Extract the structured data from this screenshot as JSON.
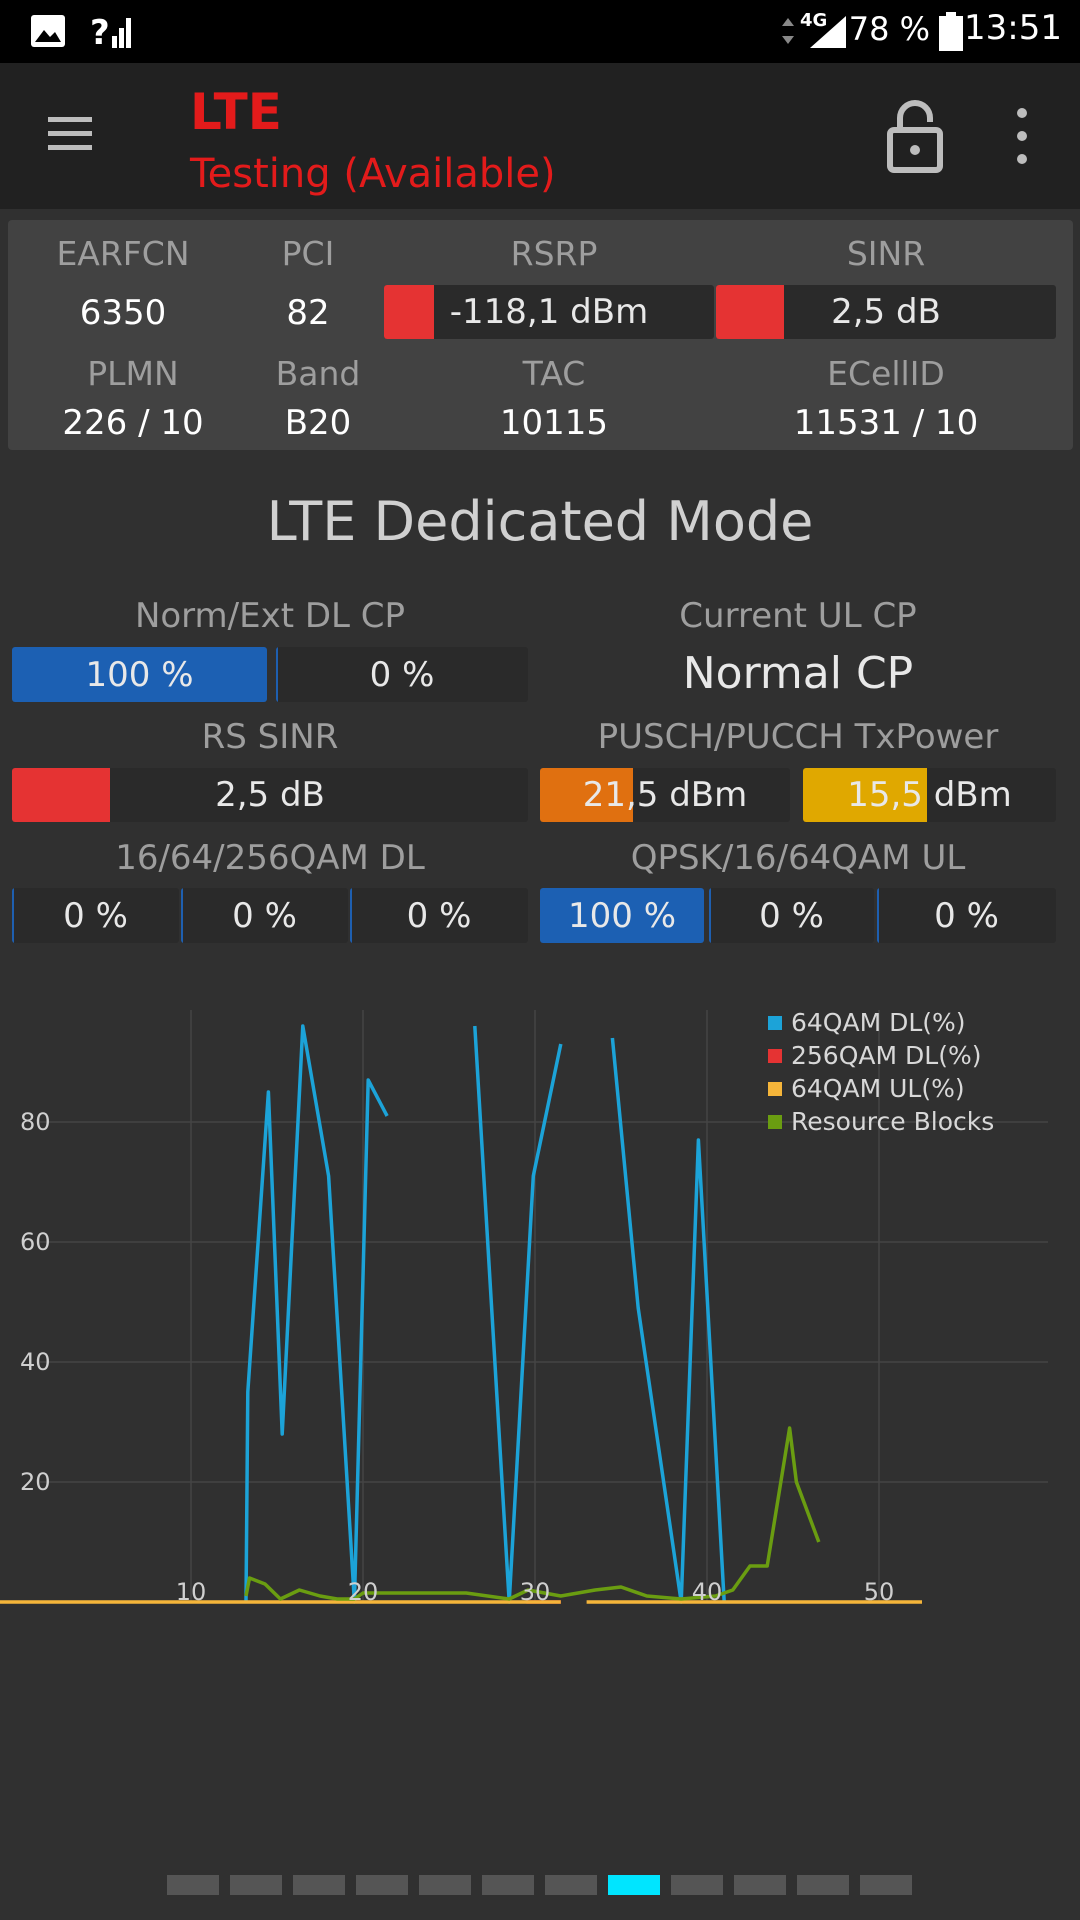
{
  "status_bar": {
    "time": "13:51",
    "battery": "78 %",
    "network": "4G",
    "icons": [
      "image-icon",
      "signal-unknown-icon",
      "data-arrows-icon",
      "signal-icon",
      "battery-icon"
    ]
  },
  "app_bar": {
    "title": "LTE",
    "subtitle": "Testing (Available)",
    "icons": [
      "menu-icon",
      "lock-open-icon",
      "more-vert-icon"
    ]
  },
  "cell_info": {
    "earfcn_label": "EARFCN",
    "earfcn": "6350",
    "pci_label": "PCI",
    "pci": "82",
    "rsrp_label": "RSRP",
    "rsrp": "-118,1 dBm",
    "rsrp_level": 0.15,
    "sinr_label": "SINR",
    "sinr": "2,5 dB",
    "sinr_level": 0.2,
    "plmn_label": "PLMN",
    "plmn": "226 / 10",
    "band_label": "Band",
    "band": "B20",
    "tac_label": "TAC",
    "tac": "10115",
    "ecellid_label": "ECellID",
    "ecellid": "11531 / 10"
  },
  "dedicated": {
    "title": "LTE Dedicated Mode",
    "dl_cp_label": "Norm/Ext DL CP",
    "dl_cp_norm": "100 %",
    "dl_cp_norm_level": 1.0,
    "dl_cp_ext": "0 %",
    "ul_cp_label": "Current UL CP",
    "ul_cp_value": "Normal CP",
    "rs_sinr_label": "RS SINR",
    "rs_sinr": "2,5 dB",
    "rs_sinr_level": 0.19,
    "txpower_label": "PUSCH/PUCCH TxPower",
    "pusch": "21,5 dBm",
    "pusch_level": 0.37,
    "pucch": "15,5 dBm",
    "pucch_level": 0.49,
    "qam_dl_label": "16/64/256QAM DL",
    "qam_dl": [
      "0 %",
      "0 %",
      "0 %"
    ],
    "qam_ul_label": "QPSK/16/64QAM UL",
    "qam_ul": [
      "100 %",
      "0 %",
      "0 %"
    ],
    "qam_ul_levels": [
      1.0,
      0,
      0
    ]
  },
  "colors": {
    "red": "#e53333",
    "blue": "#1c60b3",
    "orange": "#e07010",
    "amber": "#e0a800",
    "cyan": "#1ca3d8",
    "green": "#6a9d11",
    "ul_yellow": "#f5b53a",
    "pager_active": "#00e5ff",
    "pager_inactive": "#555555"
  },
  "chart_data": {
    "type": "line",
    "x_ticks": [
      10,
      20,
      30,
      40,
      50
    ],
    "y_ticks": [
      20,
      40,
      60,
      80
    ],
    "xlim": [
      0,
      59
    ],
    "ylim": [
      0,
      100
    ],
    "legend_position": "top-right",
    "series": [
      {
        "name": "64QAM DL(%)",
        "color": "#1ca3d8",
        "segments": [
          [
            [
              13.2,
              0
            ],
            [
              13.3,
              35
            ],
            [
              14.5,
              85
            ],
            [
              15.3,
              28
            ],
            [
              16.5,
              96
            ],
            [
              18,
              71
            ],
            [
              19.5,
              0
            ],
            [
              20.3,
              87
            ],
            [
              21.4,
              81
            ]
          ],
          [
            [
              26.5,
              96
            ],
            [
              28.5,
              0
            ],
            [
              29.9,
              71
            ],
            [
              31.5,
              93
            ]
          ],
          [
            [
              34.5,
              94
            ],
            [
              36,
              49
            ],
            [
              38.5,
              0
            ],
            [
              39.5,
              77
            ],
            [
              41,
              0
            ]
          ]
        ]
      },
      {
        "name": "256QAM DL(%)",
        "color": "#e53333",
        "segments": [
          [
            [
              29.5,
              0
            ],
            [
              31.5,
              0
            ]
          ]
        ]
      },
      {
        "name": "64QAM UL(%)",
        "color": "#f5b53a",
        "segments": [
          [
            [
              -9,
              0
            ],
            [
              31.5,
              0
            ]
          ],
          [
            [
              33,
              0
            ],
            [
              52.5,
              0
            ]
          ]
        ]
      },
      {
        "name": "Resource Blocks",
        "color": "#6a9d11",
        "segments": [
          [
            [
              -8,
              1.5
            ],
            [
              -3.2,
              1.5
            ]
          ],
          [
            [
              13.2,
              1
            ],
            [
              13.4,
              4
            ],
            [
              14.3,
              3
            ],
            [
              15.2,
              0.5
            ],
            [
              16.3,
              2
            ],
            [
              17.5,
              1
            ],
            [
              18.5,
              0.5
            ],
            [
              19.5,
              0.5
            ],
            [
              20,
              1.5
            ],
            [
              22,
              1.5
            ],
            [
              24,
              1.5
            ],
            [
              26,
              1.5
            ],
            [
              28.5,
              0.5
            ],
            [
              29.6,
              2
            ],
            [
              31.5,
              1
            ],
            [
              33.5,
              2
            ],
            [
              35,
              2.5
            ],
            [
              36.5,
              1
            ],
            [
              38.5,
              0.5
            ],
            [
              40.5,
              1
            ],
            [
              41.5,
              2
            ],
            [
              42.5,
              6
            ],
            [
              43.5,
              6
            ],
            [
              44.8,
              29
            ],
            [
              45.2,
              20
            ],
            [
              46.5,
              10
            ]
          ]
        ]
      }
    ]
  },
  "pager": {
    "count": 12,
    "active": 7
  }
}
